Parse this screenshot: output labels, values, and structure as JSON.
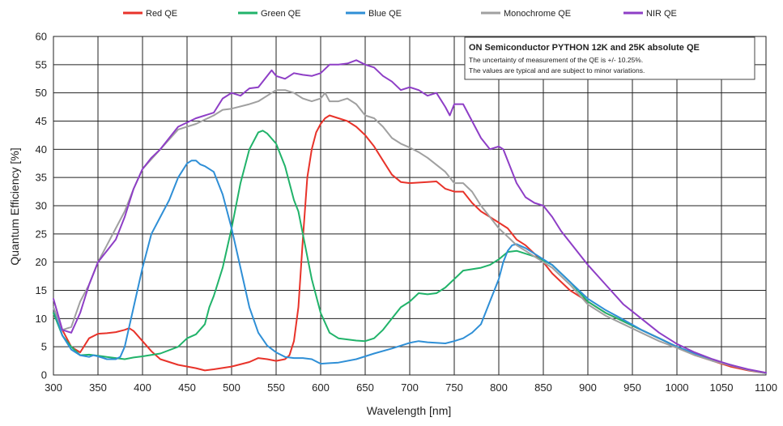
{
  "chart_data": {
    "type": "line",
    "xlabel": "Wavelength [nm]",
    "ylabel": "Quantum Efficiency [%]",
    "xlim": [
      300,
      1100
    ],
    "ylim": [
      0,
      60
    ],
    "xticks": [
      300,
      350,
      400,
      450,
      500,
      550,
      600,
      650,
      700,
      750,
      800,
      850,
      900,
      950,
      1000,
      1050,
      1100
    ],
    "yticks": [
      0,
      5,
      10,
      15,
      20,
      25,
      30,
      35,
      40,
      45,
      50,
      55,
      60
    ],
    "grid": true,
    "legend_position": "top",
    "annotation": {
      "title": "ON Semiconductor PYTHON 12K and 25K absolute QE",
      "line1": "The uncertainty of measurement of the QE is +/- 10.25%.",
      "line2": "The values are typical and are subject to minor variations."
    },
    "series": [
      {
        "name": "Red QE",
        "color": "#e8332a",
        "x": [
          300,
          310,
          320,
          330,
          340,
          350,
          360,
          370,
          380,
          385,
          390,
          400,
          410,
          420,
          440,
          460,
          470,
          480,
          500,
          520,
          530,
          540,
          550,
          560,
          565,
          570,
          575,
          580,
          585,
          590,
          595,
          600,
          605,
          610,
          620,
          630,
          640,
          650,
          660,
          670,
          680,
          690,
          700,
          720,
          730,
          740,
          750,
          760,
          770,
          780,
          790,
          800,
          810,
          820,
          830,
          840,
          850,
          860,
          870,
          880,
          900,
          920,
          940,
          960,
          980,
          1000,
          1020,
          1040,
          1060,
          1080,
          1100
        ],
        "y": [
          11,
          8,
          5,
          4,
          6.5,
          7.3,
          7.4,
          7.6,
          8,
          8.3,
          7.8,
          6,
          4.2,
          2.8,
          1.8,
          1.2,
          0.8,
          1,
          1.5,
          2.3,
          3,
          2.8,
          2.5,
          2.8,
          3.5,
          6,
          12,
          24,
          35,
          40,
          43,
          44.5,
          45.5,
          46,
          45.5,
          45,
          44,
          42.5,
          40.5,
          38,
          35.5,
          34.2,
          34,
          34.2,
          34.3,
          33,
          32.5,
          32.5,
          30.5,
          29,
          28,
          27,
          26,
          24,
          23,
          21.5,
          20,
          18,
          16.5,
          15,
          13,
          11,
          9.5,
          8,
          6.5,
          5,
          3.5,
          2.5,
          1.5,
          0.8,
          0.3
        ]
      },
      {
        "name": "Green QE",
        "color": "#21b36a",
        "x": [
          300,
          310,
          320,
          330,
          340,
          350,
          360,
          370,
          380,
          390,
          400,
          420,
          440,
          450,
          460,
          470,
          475,
          480,
          490,
          500,
          510,
          520,
          530,
          535,
          540,
          550,
          560,
          570,
          575,
          580,
          590,
          600,
          610,
          620,
          630,
          640,
          650,
          660,
          670,
          680,
          690,
          700,
          710,
          720,
          730,
          740,
          750,
          760,
          780,
          790,
          800,
          810,
          820,
          830,
          840,
          850,
          860,
          870,
          880,
          900,
          920,
          940,
          960,
          980,
          1000,
          1020,
          1040,
          1060,
          1080,
          1100
        ],
        "y": [
          11,
          7,
          5,
          3.5,
          3.6,
          3.4,
          3.2,
          3,
          2.8,
          3.1,
          3.3,
          3.8,
          5,
          6.5,
          7.2,
          9,
          12,
          14,
          19,
          26,
          34,
          40,
          43,
          43.3,
          42.8,
          41,
          37,
          31,
          29,
          25,
          17,
          11,
          7.5,
          6.5,
          6.3,
          6.1,
          6,
          6.5,
          8,
          10,
          12,
          13,
          14.5,
          14.3,
          14.5,
          15.5,
          17,
          18.5,
          19,
          19.5,
          20.5,
          21.8,
          22,
          21.5,
          21,
          20.3,
          19.5,
          18,
          16.5,
          13,
          11,
          9.5,
          8,
          6.5,
          5,
          3.8,
          2.7,
          1.8,
          0.9,
          0.3
        ]
      },
      {
        "name": "Blue QE",
        "color": "#2f8fd6",
        "x": [
          300,
          310,
          320,
          330,
          340,
          345,
          350,
          360,
          370,
          375,
          380,
          390,
          400,
          410,
          420,
          430,
          440,
          450,
          455,
          460,
          465,
          470,
          480,
          490,
          500,
          510,
          520,
          530,
          540,
          550,
          560,
          570,
          580,
          590,
          600,
          610,
          620,
          640,
          660,
          680,
          700,
          710,
          720,
          740,
          750,
          760,
          770,
          780,
          790,
          800,
          805,
          810,
          815,
          820,
          830,
          840,
          850,
          860,
          870,
          880,
          900,
          920,
          940,
          960,
          980,
          1000,
          1020,
          1040,
          1060,
          1080,
          1100
        ],
        "y": [
          12,
          7,
          4.5,
          3.5,
          3.2,
          3.5,
          3.3,
          2.8,
          2.8,
          3.2,
          5,
          12,
          19,
          25,
          28,
          31,
          35,
          37.5,
          38,
          38,
          37.3,
          37,
          36,
          32,
          26,
          19,
          12,
          7.5,
          5.2,
          4,
          3.2,
          3,
          3,
          2.8,
          2,
          2.1,
          2.2,
          2.8,
          3.8,
          4.7,
          5.7,
          6,
          5.8,
          5.6,
          6,
          6.5,
          7.5,
          9,
          13,
          17,
          20,
          22,
          23,
          23.2,
          22.5,
          21.5,
          20.5,
          19.5,
          18,
          16.5,
          13.5,
          11.5,
          9.8,
          8,
          6.5,
          5,
          3.8,
          2.5,
          1.8,
          0.9,
          0.3
        ]
      },
      {
        "name": "Monochrome QE",
        "color": "#a0a0a0",
        "x": [
          300,
          310,
          320,
          330,
          340,
          350,
          360,
          370,
          380,
          390,
          400,
          420,
          440,
          460,
          480,
          490,
          500,
          520,
          530,
          540,
          550,
          560,
          570,
          580,
          590,
          600,
          605,
          610,
          620,
          630,
          640,
          650,
          660,
          670,
          680,
          690,
          700,
          710,
          720,
          740,
          750,
          760,
          770,
          780,
          790,
          800,
          810,
          820,
          830,
          840,
          850,
          860,
          870,
          880,
          900,
          920,
          940,
          960,
          980,
          1000,
          1020,
          1040,
          1060,
          1080,
          1100
        ],
        "y": [
          12,
          8,
          8.5,
          13,
          16,
          20,
          23,
          26,
          29,
          33,
          36.5,
          40,
          43.5,
          44.5,
          46,
          47,
          47.2,
          48,
          48.5,
          49.5,
          50.5,
          50.5,
          50,
          49,
          48.5,
          49,
          50,
          48.5,
          48.5,
          49,
          48,
          46,
          45.5,
          44,
          42,
          41,
          40.3,
          39.5,
          38.5,
          36,
          34,
          34,
          32.5,
          30,
          28,
          26,
          24.5,
          23,
          22,
          21,
          20,
          19,
          17.5,
          16,
          12.5,
          10.5,
          9,
          7.5,
          6,
          4.8,
          3.5,
          2.5,
          1.7,
          0.9,
          0.3
        ]
      },
      {
        "name": "NIR QE",
        "color": "#8e3ec6",
        "x": [
          300,
          310,
          320,
          330,
          340,
          350,
          360,
          370,
          380,
          390,
          400,
          410,
          420,
          440,
          460,
          480,
          490,
          500,
          510,
          520,
          530,
          540,
          545,
          550,
          560,
          570,
          580,
          590,
          600,
          610,
          620,
          630,
          640,
          650,
          660,
          670,
          680,
          690,
          700,
          710,
          720,
          730,
          740,
          745,
          750,
          760,
          770,
          780,
          790,
          800,
          805,
          810,
          820,
          830,
          840,
          850,
          860,
          870,
          880,
          900,
          920,
          940,
          960,
          980,
          1000,
          1020,
          1040,
          1060,
          1080,
          1100
        ],
        "y": [
          13.5,
          8,
          7.5,
          11,
          16,
          20,
          22,
          24,
          28,
          33,
          36.5,
          38.5,
          40,
          44,
          45.5,
          46.5,
          49,
          50,
          49.5,
          50.8,
          51,
          53,
          54,
          53,
          52.5,
          53.5,
          53.2,
          53,
          53.5,
          55,
          55,
          55.2,
          55.8,
          55,
          54.5,
          53,
          52,
          50.5,
          51,
          50.5,
          49.5,
          50,
          47.5,
          46,
          48,
          48,
          45,
          42,
          40,
          40.5,
          40,
          38,
          34,
          31.5,
          30.5,
          30,
          28,
          25.5,
          23.5,
          19.5,
          16,
          12.5,
          10,
          7.5,
          5.5,
          4,
          2.8,
          1.8,
          1,
          0.4
        ]
      }
    ]
  }
}
